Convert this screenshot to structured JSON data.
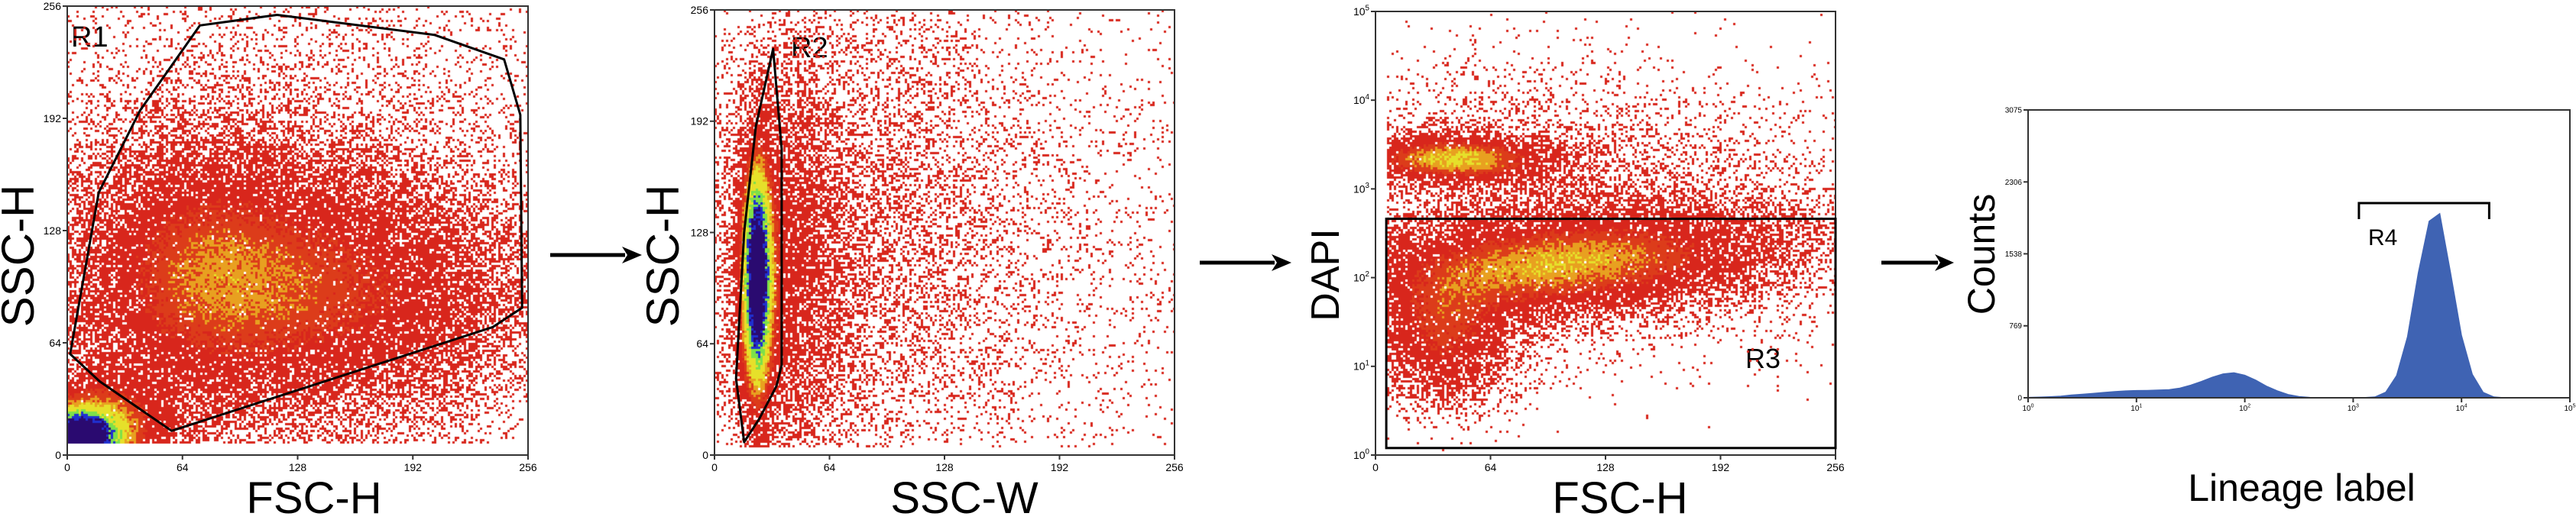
{
  "colors": {
    "density_low": "#d8261c",
    "density_mid": "#e8a020",
    "density_high_yellow": "#e6e02a",
    "density_green": "#7de04a",
    "density_blue": "#2030d0",
    "density_max": "#2a0a70",
    "histogram_fill": "#3f63b3",
    "gate_stroke": "#000000"
  },
  "arrows": [
    {
      "icon": "right-arrow-icon"
    },
    {
      "icon": "right-arrow-icon"
    },
    {
      "icon": "right-arrow-icon"
    }
  ],
  "chart_data": [
    {
      "type": "scatter",
      "style": "density dot plot",
      "xlabel": "FSC-H",
      "ylabel": "SSC-H",
      "x_scale": "linear",
      "y_scale": "linear",
      "xlim": [
        0,
        256
      ],
      "ylim": [
        0,
        256
      ],
      "xticks": [
        0,
        64,
        128,
        192,
        256
      ],
      "yticks": [
        0,
        64,
        128,
        192,
        256
      ],
      "gate": {
        "label": "R1",
        "shape": "polygon",
        "vertices": [
          [
            1.6,
            57.6
          ],
          [
            18,
            42
          ],
          [
            58,
            13.8
          ],
          [
            236.5,
            73
          ],
          [
            252.7,
            84
          ],
          [
            251.7,
            194
          ],
          [
            242.7,
            225.6
          ],
          [
            204,
            239.6
          ],
          [
            116.6,
            251
          ],
          [
            73.7,
            245
          ],
          [
            40.6,
            196.7
          ],
          [
            17.5,
            149.7
          ]
        ]
      }
    },
    {
      "type": "scatter",
      "style": "density dot plot",
      "xlabel": "SSC-W",
      "ylabel": "SSC-H",
      "x_scale": "linear",
      "y_scale": "linear",
      "xlim": [
        0,
        256
      ],
      "ylim": [
        0,
        256
      ],
      "xticks": [
        0,
        64,
        128,
        192,
        256
      ],
      "yticks": [
        0,
        64,
        128,
        192,
        256
      ],
      "gate": {
        "label": "R2",
        "shape": "polygon",
        "vertices": [
          [
            16.5,
            7.4
          ],
          [
            25,
            21
          ],
          [
            34.5,
            39.7
          ],
          [
            37.4,
            51.7
          ],
          [
            37.4,
            176
          ],
          [
            32.6,
            233.6
          ],
          [
            23,
            189
          ],
          [
            16.5,
            128
          ],
          [
            12,
            44
          ]
        ]
      }
    },
    {
      "type": "scatter",
      "style": "density dot plot",
      "xlabel": "FSC-H",
      "ylabel": "DAPI",
      "x_scale": "linear",
      "y_scale": "log",
      "xlim": [
        0,
        256
      ],
      "ylim": [
        1,
        100000
      ],
      "xticks": [
        0,
        64,
        128,
        192,
        256
      ],
      "yticks": [
        {
          "base": "10",
          "exp": "0"
        },
        {
          "base": "10",
          "exp": "1"
        },
        {
          "base": "10",
          "exp": "2"
        },
        {
          "base": "10",
          "exp": "3"
        },
        {
          "base": "10",
          "exp": "4"
        },
        {
          "base": "10",
          "exp": "5"
        }
      ],
      "gate": {
        "label": "R3",
        "shape": "rectangle",
        "x_range": [
          6,
          256
        ],
        "y_range": [
          1.2,
          460
        ]
      }
    },
    {
      "type": "histogram",
      "xlabel": "Lineage label",
      "ylabel": "Counts",
      "x_scale": "log",
      "xlim": [
        1,
        100000
      ],
      "ylim": [
        0,
        3075
      ],
      "yticks": [
        0,
        769,
        1538,
        2306,
        3075
      ],
      "xticks": [
        {
          "base": "10",
          "exp": "0"
        },
        {
          "base": "10",
          "exp": "1"
        },
        {
          "base": "10",
          "exp": "2"
        },
        {
          "base": "10",
          "exp": "3"
        },
        {
          "base": "10",
          "exp": "4"
        },
        {
          "base": "10",
          "exp": "5"
        }
      ],
      "x": [
        1,
        1.26,
        1.58,
        2,
        2.51,
        3.16,
        3.98,
        5.01,
        6.31,
        7.94,
        10,
        12.6,
        15.8,
        20,
        25.1,
        31.6,
        39.8,
        50.1,
        63.1,
        79.4,
        100,
        126,
        158,
        200,
        251,
        316,
        398,
        501,
        631,
        794,
        1000,
        1259,
        1585,
        1995,
        2512,
        3162,
        3981,
        5012,
        6310,
        7943,
        10000,
        12589,
        15849,
        19953,
        25119,
        31623,
        39811,
        50119,
        63096,
        79433,
        100000
      ],
      "counts": [
        5,
        8,
        12,
        18,
        30,
        38,
        48,
        58,
        67,
        74,
        78,
        80,
        83,
        88,
        104,
        135,
        175,
        220,
        256,
        268,
        242,
        190,
        126,
        75,
        36,
        15,
        5,
        2,
        1,
        1,
        2,
        3,
        10,
        60,
        237,
        650,
        1335,
        1887,
        1970,
        1335,
        669,
        250,
        59,
        10,
        1,
        0,
        0,
        0,
        0,
        0,
        0
      ],
      "gate": {
        "label": "R4",
        "shape": "range",
        "x_range": [
          1130,
          18000
        ]
      }
    }
  ]
}
